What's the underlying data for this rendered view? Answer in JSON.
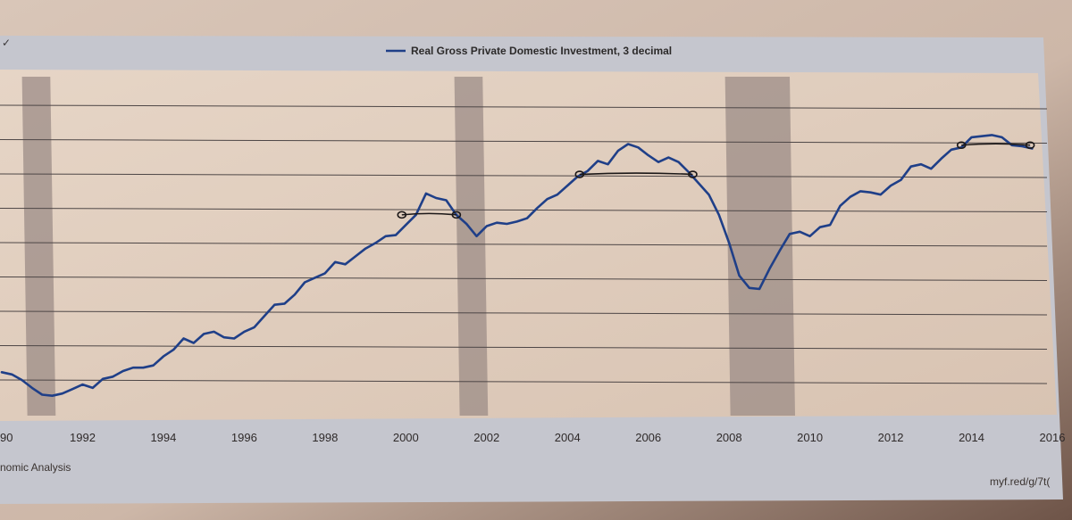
{
  "chart_data": {
    "type": "line",
    "title": "",
    "xlabel": "",
    "ylabel": "",
    "legend": {
      "placement": "top-center",
      "entries": [
        "Real Gross Private Domestic Investment, 3 decimal"
      ]
    },
    "grid": true,
    "xlim": [
      1990,
      2016
    ],
    "x_ticks": [
      "90",
      "1992",
      "1994",
      "1996",
      "1998",
      "2000",
      "2002",
      "2004",
      "2006",
      "2008",
      "2010",
      "2012",
      "2014",
      "2016"
    ],
    "y_tick_labels_visible": false,
    "recessions": [
      [
        1990.5,
        1991.2
      ],
      [
        2001.2,
        2001.9
      ],
      [
        2007.9,
        2009.5
      ]
    ],
    "series": [
      {
        "name": "Real Gross Private Domestic Investment, 3 decimal",
        "color": "#1f3f88",
        "x": [
          1990.0,
          1990.25,
          1990.5,
          1990.75,
          1991.0,
          1991.25,
          1991.5,
          1991.75,
          1992.0,
          1992.25,
          1992.5,
          1992.75,
          1993.0,
          1993.25,
          1993.5,
          1993.75,
          1994.0,
          1994.25,
          1994.5,
          1994.75,
          1995.0,
          1995.25,
          1995.5,
          1995.75,
          1996.0,
          1996.25,
          1996.5,
          1996.75,
          1997.0,
          1997.25,
          1997.5,
          1997.75,
          1998.0,
          1998.25,
          1998.5,
          1998.75,
          1999.0,
          1999.25,
          1999.5,
          1999.75,
          2000.0,
          2000.25,
          2000.5,
          2000.75,
          2001.0,
          2001.25,
          2001.5,
          2001.75,
          2002.0,
          2002.25,
          2002.5,
          2002.75,
          2003.0,
          2003.25,
          2003.5,
          2003.75,
          2004.0,
          2004.25,
          2004.5,
          2004.75,
          2005.0,
          2005.25,
          2005.5,
          2005.75,
          2006.0,
          2006.25,
          2006.5,
          2006.75,
          2007.0,
          2007.25,
          2007.5,
          2007.75,
          2008.0,
          2008.25,
          2008.5,
          2008.75,
          2009.0,
          2009.25,
          2009.5,
          2009.75,
          2010.0,
          2010.25,
          2010.5,
          2010.75,
          2011.0,
          2011.25,
          2011.5,
          2011.75,
          2012.0,
          2012.25,
          2012.5,
          2012.75,
          2013.0,
          2013.25,
          2013.5,
          2013.75,
          2014.0,
          2014.25,
          2014.5,
          2014.75,
          2015.0,
          2015.25,
          2015.5
        ],
        "values": [
          1.22,
          1.2,
          1.15,
          1.08,
          1.02,
          1.01,
          1.03,
          1.07,
          1.11,
          1.08,
          1.16,
          1.18,
          1.23,
          1.26,
          1.26,
          1.28,
          1.36,
          1.42,
          1.52,
          1.48,
          1.56,
          1.58,
          1.53,
          1.52,
          1.58,
          1.62,
          1.72,
          1.82,
          1.83,
          1.91,
          2.02,
          2.06,
          2.1,
          2.2,
          2.18,
          2.25,
          2.32,
          2.37,
          2.43,
          2.44,
          2.53,
          2.62,
          2.81,
          2.77,
          2.75,
          2.62,
          2.54,
          2.43,
          2.52,
          2.55,
          2.54,
          2.56,
          2.59,
          2.68,
          2.76,
          2.8,
          2.88,
          2.96,
          3.01,
          3.1,
          3.07,
          3.19,
          3.25,
          3.22,
          3.15,
          3.09,
          3.13,
          3.09,
          3.0,
          2.9,
          2.8,
          2.62,
          2.37,
          2.08,
          1.97,
          1.96,
          2.14,
          2.3,
          2.45,
          2.47,
          2.43,
          2.51,
          2.53,
          2.7,
          2.78,
          2.83,
          2.82,
          2.8,
          2.88,
          2.93,
          3.05,
          3.07,
          3.03,
          3.12,
          3.2,
          3.22,
          3.31,
          3.32,
          3.33,
          3.31,
          3.24,
          3.23,
          3.21
        ]
      }
    ],
    "annotations": [
      {
        "type": "hand-drawn-line",
        "x": [
          1999.9,
          2001.25
        ],
        "values": [
          2.62,
          2.62
        ]
      },
      {
        "type": "hand-drawn-line",
        "x": [
          2004.3,
          2007.1
        ],
        "values": [
          2.98,
          2.98
        ]
      },
      {
        "type": "hand-drawn-line",
        "x": [
          2013.75,
          2015.45
        ],
        "values": [
          3.24,
          3.24
        ]
      }
    ]
  },
  "footer": {
    "source": "nomic Analysis",
    "link": "myf.red/g/7t("
  },
  "colors": {
    "plot_background": "#e3d0c1",
    "frame": "#c4c4cc",
    "recession_band": "#9c8c87",
    "grid": "#4d4646",
    "line": "#1f3f88",
    "annotation": "#1c1818"
  }
}
